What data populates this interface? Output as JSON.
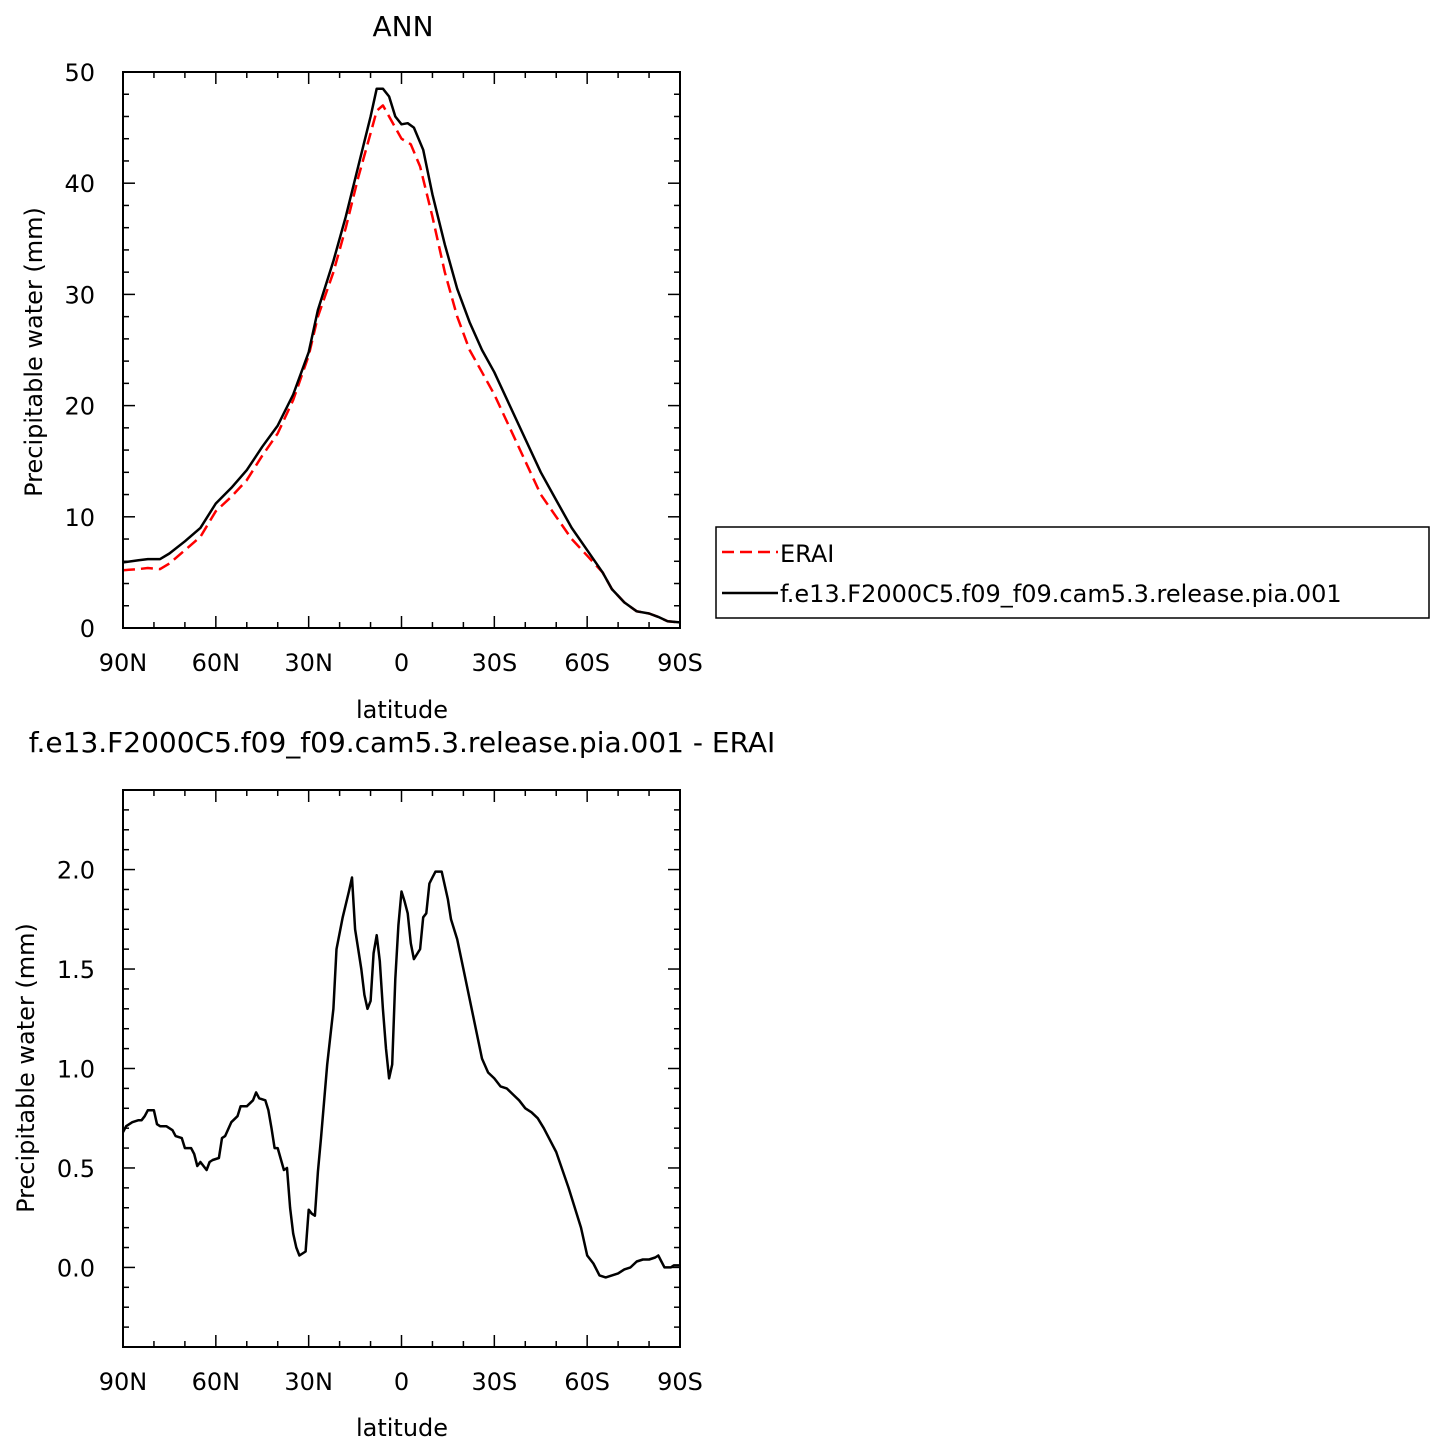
{
  "chart_data": [
    {
      "type": "line",
      "title": "ANN",
      "xlabel": "latitude",
      "ylabel": "Precipitable water (mm)",
      "xlim": [
        90,
        -90
      ],
      "ylim": [
        0,
        50
      ],
      "x_tick_values": [
        90,
        60,
        30,
        0,
        -30,
        -60,
        -90
      ],
      "x_tick_labels": [
        "90N",
        "60N",
        "30N",
        "0",
        "30S",
        "60S",
        "90S"
      ],
      "y_tick_values": [
        0,
        10,
        20,
        30,
        40,
        50
      ],
      "y_tick_labels": [
        "0",
        "10",
        "20",
        "30",
        "40",
        "50"
      ],
      "grid": false,
      "legend_position": "right",
      "series": [
        {
          "name": "ERAI",
          "color": "#ff0000",
          "dash": "dashed",
          "points": [
            [
              90,
              5.2
            ],
            [
              85,
              5.3
            ],
            [
              82,
              5.4
            ],
            [
              78,
              5.3
            ],
            [
              75,
              5.8
            ],
            [
              70,
              7
            ],
            [
              65,
              8.2
            ],
            [
              60,
              10.5
            ],
            [
              55,
              11.8
            ],
            [
              50,
              13.3
            ],
            [
              45,
              15.5
            ],
            [
              40,
              17.5
            ],
            [
              35,
              20.5
            ],
            [
              30,
              24.5
            ],
            [
              27,
              28
            ],
            [
              22,
              32
            ],
            [
              18,
              36
            ],
            [
              14,
              40.5
            ],
            [
              10,
              44.5
            ],
            [
              8,
              46.5
            ],
            [
              6,
              47
            ],
            [
              4,
              46
            ],
            [
              2,
              45
            ],
            [
              0,
              44
            ],
            [
              -3,
              43.5
            ],
            [
              -6,
              41.5
            ],
            [
              -10,
              37
            ],
            [
              -14,
              32
            ],
            [
              -18,
              28
            ],
            [
              -22,
              25
            ],
            [
              -26,
              23
            ],
            [
              -30,
              21
            ],
            [
              -35,
              18
            ],
            [
              -40,
              15
            ],
            [
              -45,
              12
            ],
            [
              -50,
              10
            ],
            [
              -55,
              8
            ],
            [
              -60,
              6.5
            ],
            [
              -65,
              5
            ],
            [
              -68,
              3.5
            ],
            [
              -72,
              2.3
            ],
            [
              -76,
              1.5
            ],
            [
              -80,
              1.3
            ],
            [
              -83,
              1.0
            ],
            [
              -86,
              0.6
            ],
            [
              -90,
              0.5
            ]
          ]
        },
        {
          "name": "f.e13.F2000C5.f09_f09.cam5.3.release.pia.001",
          "color": "#000000",
          "dash": "solid",
          "points": [
            [
              90,
              5.9
            ],
            [
              85,
              6.1
            ],
            [
              82,
              6.2
            ],
            [
              78,
              6.2
            ],
            [
              75,
              6.7
            ],
            [
              70,
              7.8
            ],
            [
              65,
              9.0
            ],
            [
              60,
              11.2
            ],
            [
              55,
              12.6
            ],
            [
              50,
              14.2
            ],
            [
              45,
              16.3
            ],
            [
              40,
              18.2
            ],
            [
              35,
              21.0
            ],
            [
              30,
              24.8
            ],
            [
              27,
              28.6
            ],
            [
              22,
              33
            ],
            [
              18,
              37
            ],
            [
              14,
              41.5
            ],
            [
              10,
              46
            ],
            [
              8,
              48.5
            ],
            [
              6,
              48.5
            ],
            [
              4,
              47.8
            ],
            [
              2,
              46
            ],
            [
              0,
              45.3
            ],
            [
              -2,
              45.4
            ],
            [
              -4,
              45
            ],
            [
              -7,
              43
            ],
            [
              -10,
              39
            ],
            [
              -14,
              34.5
            ],
            [
              -18,
              30.5
            ],
            [
              -22,
              27.5
            ],
            [
              -26,
              25
            ],
            [
              -30,
              23
            ],
            [
              -35,
              20
            ],
            [
              -40,
              17
            ],
            [
              -45,
              14
            ],
            [
              -50,
              11.5
            ],
            [
              -55,
              9
            ],
            [
              -60,
              7
            ],
            [
              -65,
              5
            ],
            [
              -68,
              3.5
            ],
            [
              -72,
              2.3
            ],
            [
              -76,
              1.5
            ],
            [
              -80,
              1.3
            ],
            [
              -83,
              1.0
            ],
            [
              -86,
              0.6
            ],
            [
              -90,
              0.5
            ]
          ]
        }
      ],
      "legend": [
        {
          "label": "ERAI",
          "color": "#ff0000",
          "dash": "dashed"
        },
        {
          "label": "f.e13.F2000C5.f09_f09.cam5.3.release.pia.001",
          "color": "#000000",
          "dash": "solid"
        }
      ]
    },
    {
      "type": "line",
      "title": "f.e13.F2000C5.f09_f09.cam5.3.release.pia.001 - ERAI",
      "xlabel": "latitude",
      "ylabel": "Precipitable water (mm)",
      "xlim": [
        90,
        -90
      ],
      "ylim": [
        -0.4,
        2.4
      ],
      "x_tick_values": [
        90,
        60,
        30,
        0,
        -30,
        -60,
        -90
      ],
      "x_tick_labels": [
        "90N",
        "60N",
        "30N",
        "0",
        "30S",
        "60S",
        "90S"
      ],
      "y_tick_values": [
        0,
        0.5,
        1.0,
        1.5,
        2.0
      ],
      "y_tick_labels": [
        "0.0",
        "0.5",
        "1.0",
        "1.5",
        "2.0"
      ],
      "grid": false,
      "series": [
        {
          "color": "#000000",
          "dash": "solid",
          "points": [
            [
              90,
              0.68
            ],
            [
              89,
              0.71
            ],
            [
              87,
              0.73
            ],
            [
              85,
              0.74
            ],
            [
              84,
              0.74
            ],
            [
              83,
              0.76
            ],
            [
              82,
              0.79
            ],
            [
              80,
              0.79
            ],
            [
              79,
              0.72
            ],
            [
              78,
              0.71
            ],
            [
              76,
              0.71
            ],
            [
              75,
              0.7
            ],
            [
              74,
              0.69
            ],
            [
              73,
              0.66
            ],
            [
              71,
              0.65
            ],
            [
              70,
              0.6
            ],
            [
              68,
              0.6
            ],
            [
              67,
              0.57
            ],
            [
              66,
              0.51
            ],
            [
              65,
              0.53
            ],
            [
              63,
              0.49
            ],
            [
              62,
              0.53
            ],
            [
              61,
              0.54
            ],
            [
              59,
              0.55
            ],
            [
              58,
              0.65
            ],
            [
              57,
              0.66
            ],
            [
              55,
              0.73
            ],
            [
              53,
              0.76
            ],
            [
              52,
              0.81
            ],
            [
              50,
              0.81
            ],
            [
              48,
              0.84
            ],
            [
              47,
              0.88
            ],
            [
              46,
              0.85
            ],
            [
              44,
              0.84
            ],
            [
              43,
              0.79
            ],
            [
              42,
              0.7
            ],
            [
              41,
              0.6
            ],
            [
              40,
              0.6
            ],
            [
              38,
              0.49
            ],
            [
              37,
              0.5
            ],
            [
              36,
              0.3
            ],
            [
              35,
              0.17
            ],
            [
              34,
              0.1
            ],
            [
              33,
              0.06
            ],
            [
              31,
              0.08
            ],
            [
              30,
              0.29
            ],
            [
              29,
              0.27
            ],
            [
              28,
              0.26
            ],
            [
              27,
              0.48
            ],
            [
              26,
              0.65
            ],
            [
              24,
              1.02
            ],
            [
              22,
              1.3
            ],
            [
              21,
              1.6
            ],
            [
              19,
              1.76
            ],
            [
              17,
              1.89
            ],
            [
              16,
              1.96
            ],
            [
              15,
              1.7
            ],
            [
              14,
              1.6
            ],
            [
              13,
              1.5
            ],
            [
              12,
              1.37
            ],
            [
              11,
              1.3
            ],
            [
              10,
              1.34
            ],
            [
              9,
              1.58
            ],
            [
              8,
              1.67
            ],
            [
              7,
              1.54
            ],
            [
              6,
              1.3
            ],
            [
              5,
              1.1
            ],
            [
              4,
              0.95
            ],
            [
              3,
              1.02
            ],
            [
              2,
              1.45
            ],
            [
              1,
              1.72
            ],
            [
              0,
              1.89
            ],
            [
              -1,
              1.84
            ],
            [
              -2,
              1.78
            ],
            [
              -3,
              1.63
            ],
            [
              -4,
              1.55
            ],
            [
              -6,
              1.6
            ],
            [
              -7,
              1.76
            ],
            [
              -8,
              1.78
            ],
            [
              -9,
              1.93
            ],
            [
              -10,
              1.96
            ],
            [
              -11,
              1.99
            ],
            [
              -13,
              1.99
            ],
            [
              -15,
              1.85
            ],
            [
              -16,
              1.75
            ],
            [
              -18,
              1.65
            ],
            [
              -20,
              1.5
            ],
            [
              -22,
              1.35
            ],
            [
              -24,
              1.2
            ],
            [
              -26,
              1.05
            ],
            [
              -28,
              0.98
            ],
            [
              -30,
              0.95
            ],
            [
              -32,
              0.91
            ],
            [
              -34,
              0.9
            ],
            [
              -36,
              0.87
            ],
            [
              -38,
              0.84
            ],
            [
              -40,
              0.8
            ],
            [
              -42,
              0.78
            ],
            [
              -44,
              0.75
            ],
            [
              -46,
              0.7
            ],
            [
              -50,
              0.58
            ],
            [
              -54,
              0.4
            ],
            [
              -58,
              0.2
            ],
            [
              -60,
              0.06
            ],
            [
              -62,
              0.02
            ],
            [
              -64,
              -0.04
            ],
            [
              -66,
              -0.05
            ],
            [
              -68,
              -0.04
            ],
            [
              -70,
              -0.03
            ],
            [
              -72,
              -0.01
            ],
            [
              -74,
              0.0
            ],
            [
              -76,
              0.03
            ],
            [
              -78,
              0.04
            ],
            [
              -80,
              0.04
            ],
            [
              -82,
              0.05
            ],
            [
              -83,
              0.06
            ],
            [
              -84,
              0.03
            ],
            [
              -85,
              0.0
            ],
            [
              -87,
              0.0
            ],
            [
              -88,
              0.01
            ],
            [
              -90,
              0.01
            ]
          ]
        }
      ]
    }
  ]
}
